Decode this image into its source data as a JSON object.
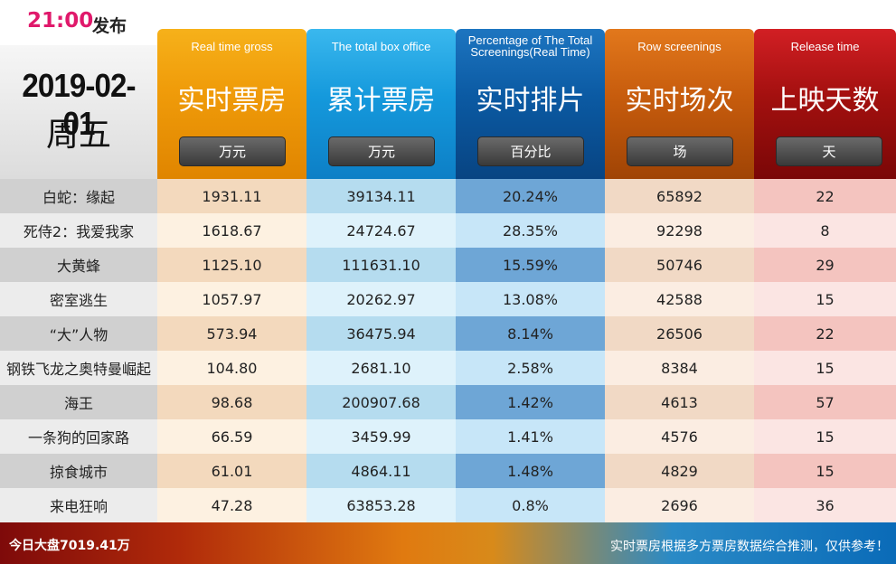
{
  "header": {
    "time": "21:00",
    "release_label": "发布",
    "date": "2019-02-01",
    "weekday": "周五"
  },
  "columns": [
    {
      "en": "Real time gross",
      "cn": "实时票房",
      "unit": "万元",
      "color": "#f09c0a"
    },
    {
      "en": "The total box office",
      "cn": "累计票房",
      "unit": "万元",
      "color": "#1599dc"
    },
    {
      "en": "Percentage of The Total Screenings(Real Time)",
      "cn": "实时排片",
      "unit": "百分比",
      "color": "#0b5aa3"
    },
    {
      "en": "Row screenings",
      "cn": "实时场次",
      "unit": "场",
      "color": "#c75c0d"
    },
    {
      "en": "Release time",
      "cn": "上映天数",
      "unit": "天",
      "color": "#a3100f"
    }
  ],
  "rows": [
    {
      "name": "白蛇：缘起",
      "gross": "1931.11",
      "total": "39134.11",
      "pct": "20.24%",
      "screenings": "65892",
      "days": "22"
    },
    {
      "name": "死侍2：我爱我家",
      "gross": "1618.67",
      "total": "24724.67",
      "pct": "28.35%",
      "screenings": "92298",
      "days": "8"
    },
    {
      "name": "大黄蜂",
      "gross": "1125.10",
      "total": "111631.10",
      "pct": "15.59%",
      "screenings": "50746",
      "days": "29"
    },
    {
      "name": "密室逃生",
      "gross": "1057.97",
      "total": "20262.97",
      "pct": "13.08%",
      "screenings": "42588",
      "days": "15"
    },
    {
      "name": "“大”人物",
      "gross": "573.94",
      "total": "36475.94",
      "pct": "8.14%",
      "screenings": "26506",
      "days": "22"
    },
    {
      "name": "钢铁飞龙之奥特曼崛起",
      "gross": "104.80",
      "total": "2681.10",
      "pct": "2.58%",
      "screenings": "8384",
      "days": "15"
    },
    {
      "name": "海王",
      "gross": "98.68",
      "total": "200907.68",
      "pct": "1.42%",
      "screenings": "4613",
      "days": "57"
    },
    {
      "name": "一条狗的回家路",
      "gross": "66.59",
      "total": "3459.99",
      "pct": "1.41%",
      "screenings": "4576",
      "days": "15"
    },
    {
      "name": "掠食城市",
      "gross": "61.01",
      "total": "4864.11",
      "pct": "1.48%",
      "screenings": "4829",
      "days": "15"
    },
    {
      "name": "来电狂响",
      "gross": "47.28",
      "total": "63853.28",
      "pct": "0.8%",
      "screenings": "2696",
      "days": "36"
    }
  ],
  "footer": {
    "total": "今日大盘7019.41万",
    "note": "实时票房根据多方票房数据综合推测，仅供参考！"
  }
}
